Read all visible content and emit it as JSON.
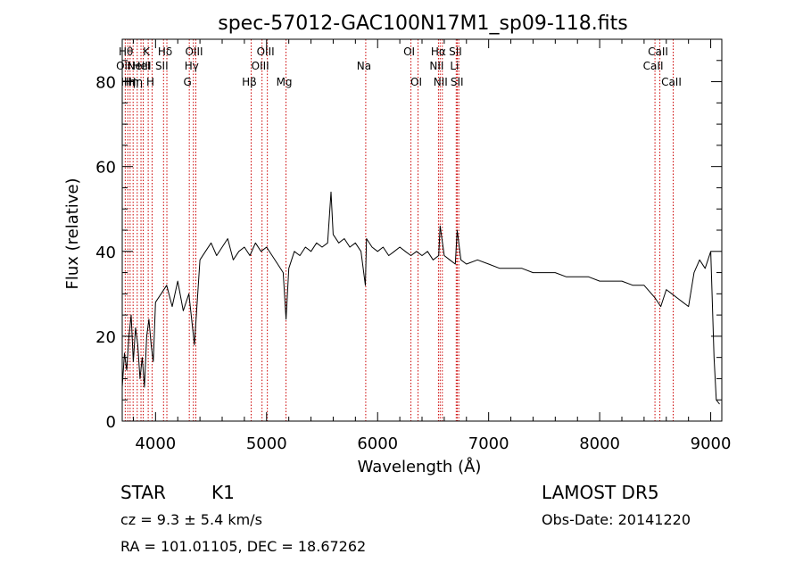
{
  "chart_data": {
    "type": "line",
    "title": "spec-57012-GAC100N17M1_sp09-118.fits",
    "xlabel": "Wavelength (Å)",
    "ylabel": "Flux (relative)",
    "xlim": [
      3700,
      9100
    ],
    "ylim": [
      0,
      90
    ],
    "x_ticks": [
      4000,
      5000,
      6000,
      7000,
      8000,
      9000
    ],
    "y_ticks": [
      0,
      20,
      40,
      60,
      80
    ],
    "x_tick_labels": [
      "4000",
      "5000",
      "6000",
      "7000",
      "8000",
      "9000"
    ],
    "y_tick_labels": [
      "0",
      "20",
      "40",
      "60",
      "80"
    ],
    "grid": false,
    "line_color": "#000000",
    "marker_color": "#cc0000",
    "series": [
      {
        "x": [
          3700,
          3720,
          3740,
          3760,
          3780,
          3800,
          3820,
          3840,
          3860,
          3880,
          3900,
          3920,
          3940,
          3960,
          3980,
          4000,
          4050,
          4100,
          4150,
          4200,
          4250,
          4300,
          4350,
          4400,
          4450,
          4500,
          4550,
          4600,
          4650,
          4700,
          4750,
          4800,
          4850,
          4900,
          4950,
          5000,
          5050,
          5100,
          5150,
          5175,
          5200,
          5250,
          5300,
          5350,
          5400,
          5450,
          5500,
          5550,
          5580,
          5600,
          5650,
          5700,
          5750,
          5800,
          5850,
          5890,
          5900,
          5950,
          6000,
          6050,
          6100,
          6150,
          6200,
          6250,
          6300,
          6350,
          6400,
          6450,
          6500,
          6550,
          6563,
          6600,
          6650,
          6700,
          6717,
          6750,
          6800,
          6900,
          7000,
          7100,
          7200,
          7300,
          7400,
          7500,
          7600,
          7700,
          7800,
          7900,
          8000,
          8100,
          8200,
          8300,
          8400,
          8500,
          8550,
          8600,
          8650,
          8700,
          8750,
          8800,
          8850,
          8900,
          8950,
          9000,
          9030,
          9050,
          9080
        ],
        "y": [
          8,
          16,
          12,
          20,
          25,
          14,
          22,
          18,
          10,
          15,
          8,
          20,
          24,
          18,
          14,
          28,
          30,
          32,
          27,
          33,
          26,
          30,
          18,
          38,
          40,
          42,
          39,
          41,
          43,
          38,
          40,
          41,
          39,
          42,
          40,
          41,
          39,
          37,
          35,
          24,
          36,
          40,
          39,
          41,
          40,
          42,
          41,
          42,
          54,
          44,
          42,
          43,
          41,
          42,
          40,
          32,
          43,
          41,
          40,
          41,
          39,
          40,
          41,
          40,
          39,
          40,
          39,
          40,
          38,
          39,
          46,
          39,
          38,
          37,
          45,
          38,
          37,
          38,
          37,
          36,
          36,
          36,
          35,
          35,
          35,
          34,
          34,
          34,
          33,
          33,
          33,
          32,
          32,
          29,
          27,
          31,
          30,
          29,
          28,
          27,
          35,
          38,
          36,
          40,
          15,
          5,
          4
        ]
      }
    ],
    "line_markers": [
      {
        "x": 3727,
        "label": "OII",
        "row": 2
      },
      {
        "x": 3750,
        "label": "Hθ",
        "row": 1
      },
      {
        "x": 3771,
        "label": "Hη",
        "row": 3
      },
      {
        "x": 3798,
        "label": "Hη",
        "row": 3
      },
      {
        "x": 3835,
        "label": "Hη",
        "row": 3
      },
      {
        "x": 3869,
        "label": "NeIII",
        "row": 2
      },
      {
        "x": 3889,
        "label": "HeI",
        "row": 2
      },
      {
        "x": 3934,
        "label": "K",
        "row": 1
      },
      {
        "x": 3969,
        "label": "H",
        "row": 3
      },
      {
        "x": 4072,
        "label": "SII",
        "row": 2
      },
      {
        "x": 4102,
        "label": "Hδ",
        "row": 1
      },
      {
        "x": 4304,
        "label": "G",
        "row": 3
      },
      {
        "x": 4341,
        "label": "Hγ",
        "row": 2
      },
      {
        "x": 4363,
        "label": "OIII",
        "row": 1
      },
      {
        "x": 4861,
        "label": "Hβ",
        "row": 3
      },
      {
        "x": 4959,
        "label": "OIII",
        "row": 2
      },
      {
        "x": 5007,
        "label": "OIII",
        "row": 1
      },
      {
        "x": 5175,
        "label": "Mg",
        "row": 3
      },
      {
        "x": 5893,
        "label": "Na",
        "row": 2
      },
      {
        "x": 6300,
        "label": "OI",
        "row": 1
      },
      {
        "x": 6364,
        "label": "OI",
        "row": 3
      },
      {
        "x": 6548,
        "label": "NII",
        "row": 2
      },
      {
        "x": 6563,
        "label": "Hα",
        "row": 1
      },
      {
        "x": 6583,
        "label": "NII",
        "row": 3
      },
      {
        "x": 6708,
        "label": "Li",
        "row": 2
      },
      {
        "x": 6717,
        "label": "SII",
        "row": 1
      },
      {
        "x": 6731,
        "label": "SII",
        "row": 3
      },
      {
        "x": 8498,
        "label": "CaII",
        "row": 2
      },
      {
        "x": 8542,
        "label": "CaII",
        "row": 1
      },
      {
        "x": 8662,
        "label": "CaII",
        "row": 3
      }
    ]
  },
  "info": {
    "object_class": "STAR",
    "subclass": "K1",
    "survey": "LAMOST DR5",
    "redshift": "cz = 9.3 ± 5.4 km/s",
    "obs_date": "Obs-Date: 20141220",
    "coords": "RA = 101.01105, DEC =  18.67262"
  }
}
